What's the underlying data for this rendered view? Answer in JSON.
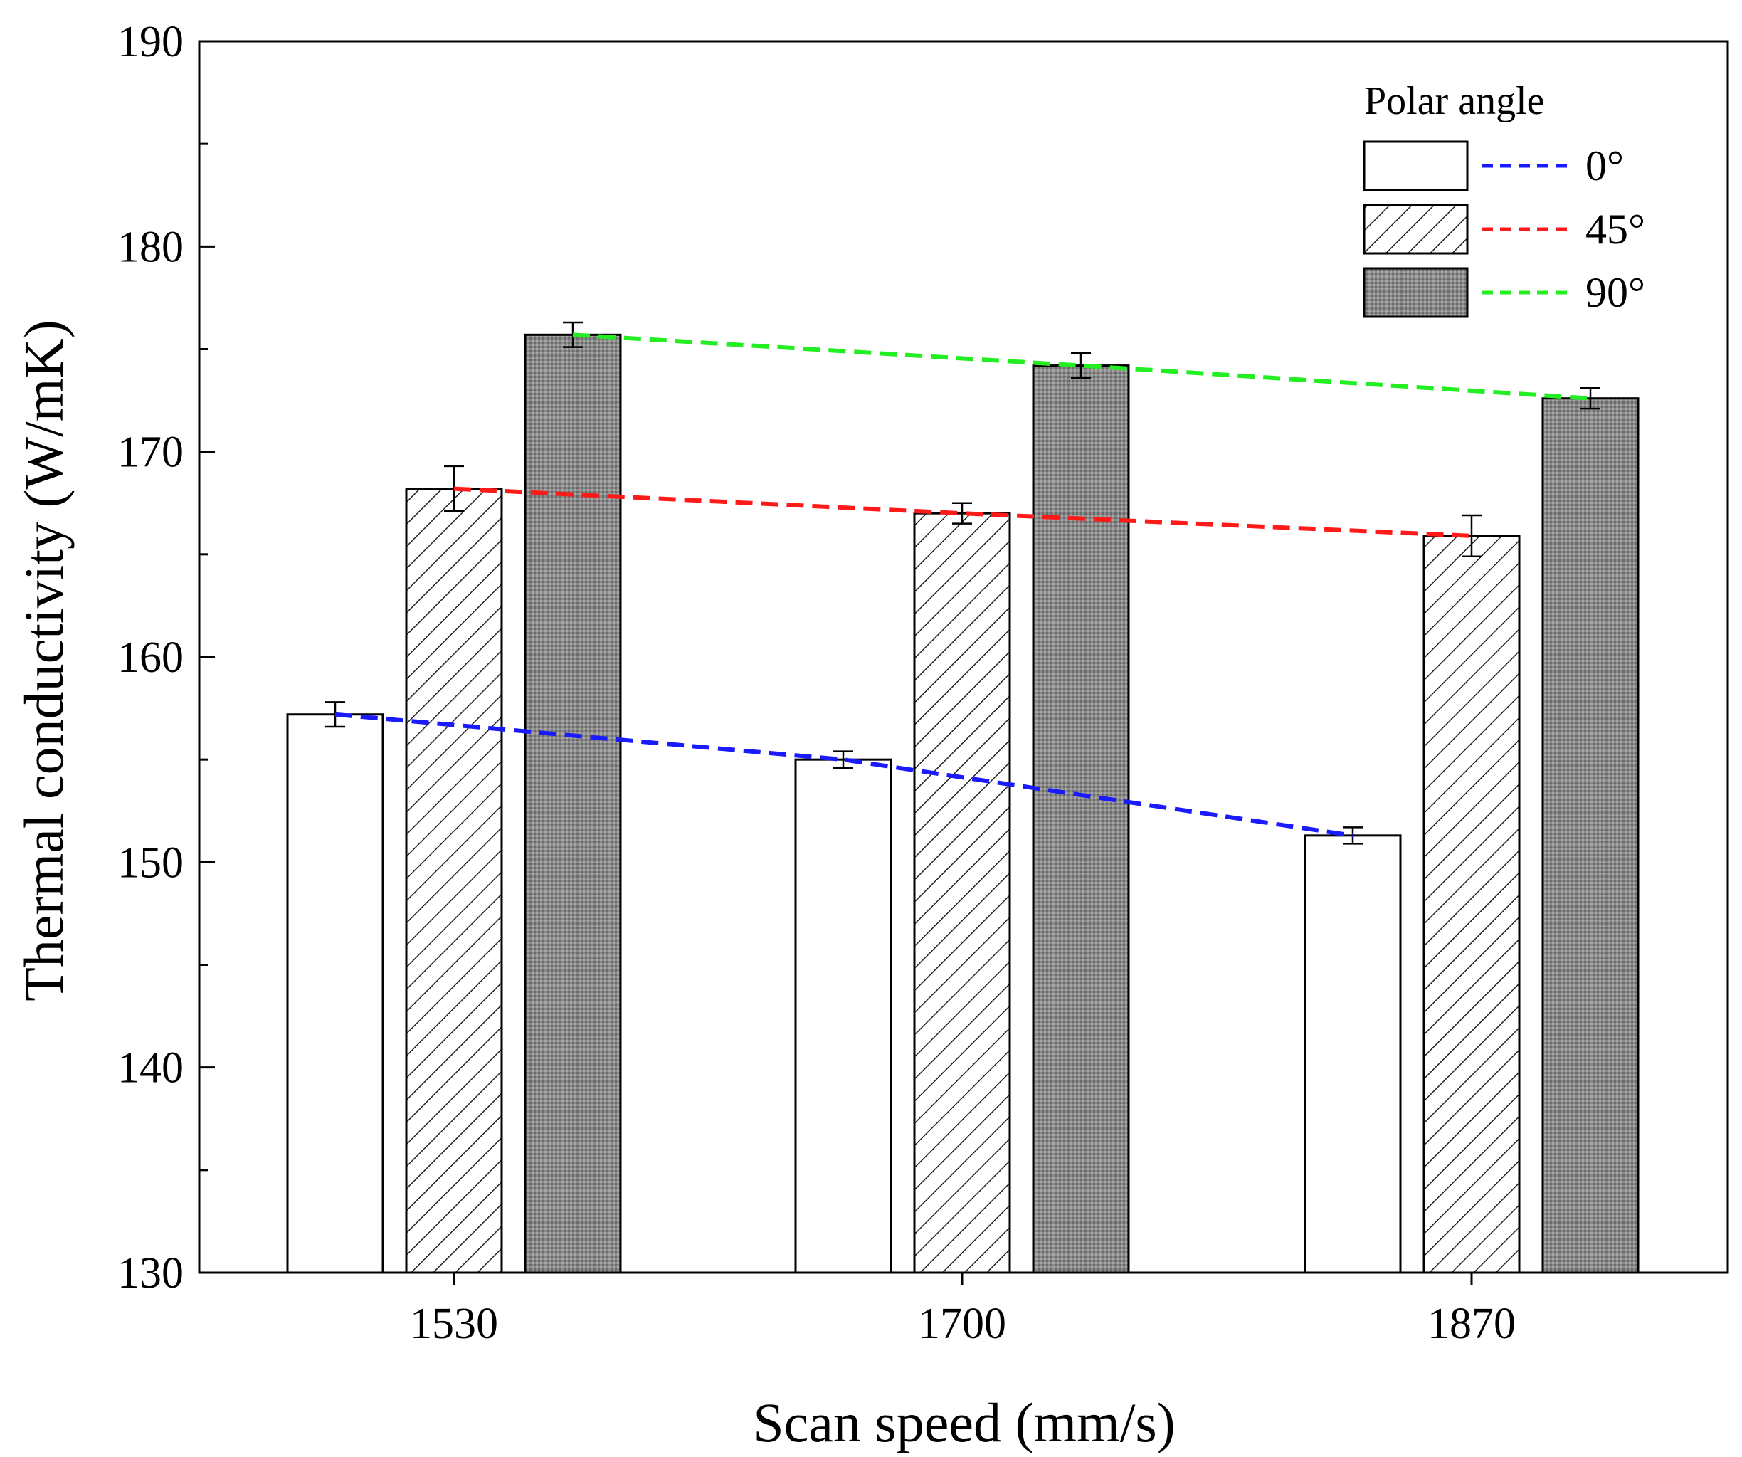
{
  "chart_data": {
    "type": "bar",
    "title": "",
    "xlabel": "Scan speed (mm/s)",
    "ylabel": "Thermal conductivity (W/mK)",
    "ylim": [
      130,
      190
    ],
    "yticks": [
      130,
      140,
      150,
      160,
      170,
      180,
      190
    ],
    "categories": [
      "1530",
      "1700",
      "1870"
    ],
    "legend_title": "Polar angle",
    "legend_position": "top-right",
    "series": [
      {
        "name": "0°",
        "fill": "white",
        "line_color": "#1a1aff",
        "values": [
          157.2,
          155.0,
          151.3
        ],
        "errors": [
          0.6,
          0.4,
          0.4
        ]
      },
      {
        "name": "45°",
        "fill": "hatch",
        "line_color": "#ff1a1a",
        "values": [
          168.2,
          167.0,
          165.9
        ],
        "errors": [
          1.1,
          0.5,
          1.0
        ]
      },
      {
        "name": "90°",
        "fill": "gray",
        "line_color": "#22ee22",
        "values": [
          175.7,
          174.2,
          172.6
        ],
        "errors": [
          0.6,
          0.6,
          0.5
        ]
      }
    ]
  }
}
